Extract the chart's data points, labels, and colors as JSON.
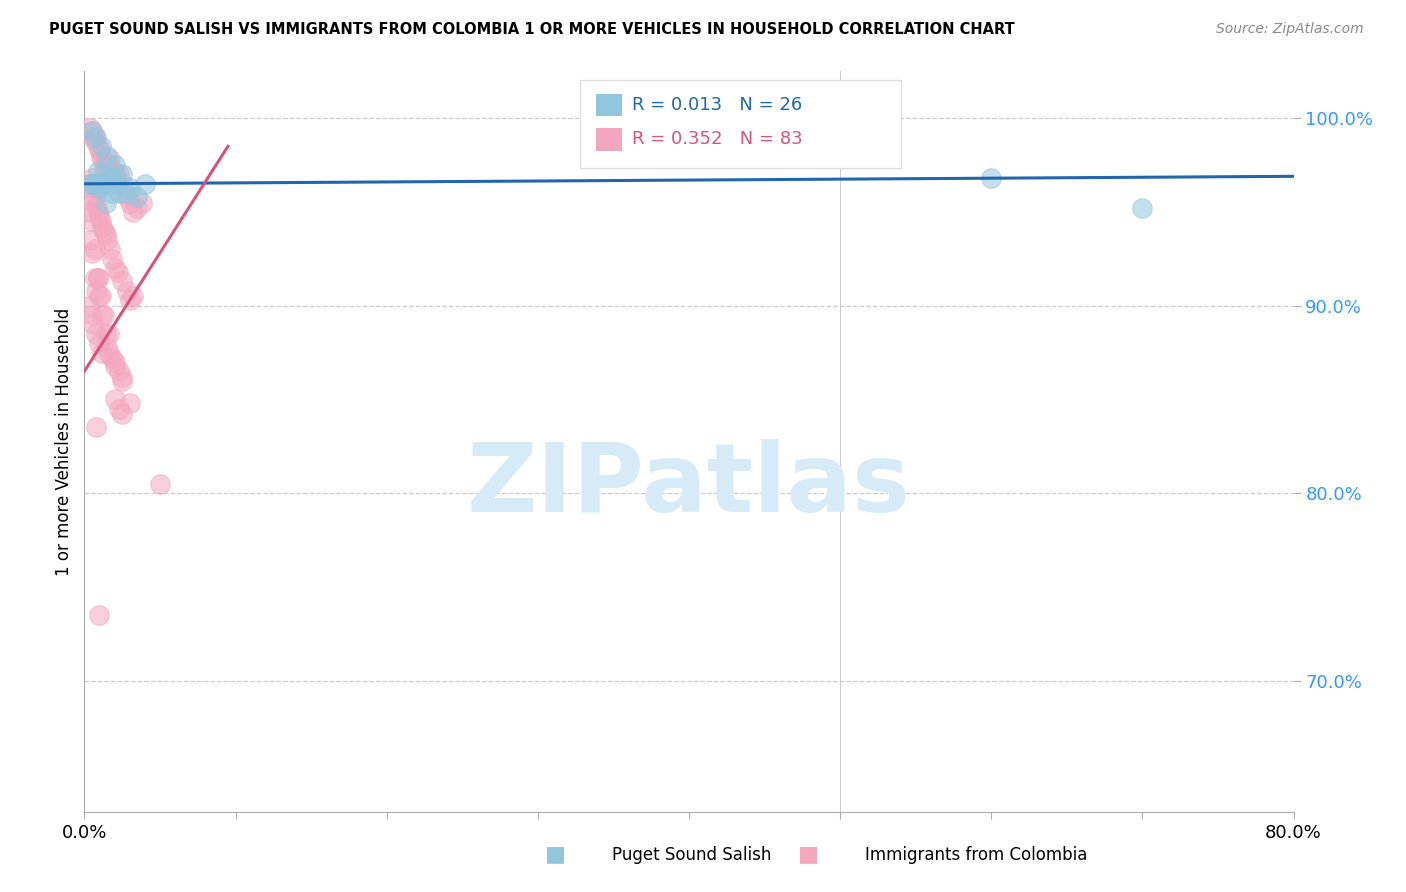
{
  "title": "PUGET SOUND SALISH VS IMMIGRANTS FROM COLOMBIA 1 OR MORE VEHICLES IN HOUSEHOLD CORRELATION CHART",
  "source": "Source: ZipAtlas.com",
  "ylabel": "1 or more Vehicles in Household",
  "xlim": [
    0.0,
    80.0
  ],
  "ylim": [
    63.0,
    102.5
  ],
  "yticks": [
    70.0,
    80.0,
    90.0,
    100.0
  ],
  "ytick_labels": [
    "70.0%",
    "80.0%",
    "90.0%",
    "100.0%"
  ],
  "xticks": [
    0,
    10,
    20,
    30,
    40,
    50,
    60,
    70,
    80
  ],
  "blue_color": "#92c5de",
  "pink_color": "#f4a6be",
  "blue_line_color": "#2166ac",
  "pink_line_color": "#d6547a",
  "blue_line_x": [
    0.0,
    80.0
  ],
  "blue_line_y": [
    96.5,
    96.9
  ],
  "pink_line_x": [
    0.0,
    9.5
  ],
  "pink_line_y": [
    86.5,
    98.5
  ],
  "watermark": "ZIPatlas",
  "watermark_color": "#d6eaf8",
  "blue_scatter_x": [
    0.5,
    0.7,
    1.1,
    1.5,
    2.0,
    2.5,
    0.9,
    1.3,
    1.7,
    2.2,
    0.6,
    1.2,
    1.8,
    2.8,
    3.5,
    1.0,
    1.6,
    2.3,
    0.8,
    2.0,
    0.4,
    3.0,
    60.0,
    70.0,
    4.0,
    1.4
  ],
  "blue_scatter_y": [
    99.3,
    99.0,
    98.5,
    98.0,
    97.5,
    97.0,
    97.2,
    97.0,
    96.8,
    96.5,
    96.5,
    96.5,
    96.0,
    96.0,
    95.8,
    96.3,
    96.5,
    96.0,
    96.5,
    96.8,
    96.5,
    96.3,
    96.8,
    95.2,
    96.5,
    95.5
  ],
  "pink_scatter_x": [
    0.4,
    0.5,
    0.6,
    0.7,
    0.8,
    0.9,
    1.0,
    1.1,
    1.2,
    1.3,
    1.4,
    1.5,
    1.6,
    1.7,
    1.8,
    2.0,
    2.1,
    2.2,
    2.3,
    2.5,
    2.6,
    2.8,
    3.0,
    3.2,
    3.5,
    3.8,
    0.5,
    0.6,
    0.7,
    0.8,
    0.9,
    1.0,
    1.1,
    1.2,
    1.3,
    1.4,
    1.5,
    1.7,
    1.8,
    2.0,
    2.2,
    2.5,
    2.8,
    3.0,
    3.2,
    0.3,
    0.5,
    0.6,
    0.8,
    1.0,
    1.2,
    1.5,
    1.8,
    2.0,
    2.3,
    2.5,
    5.0,
    0.4,
    0.5,
    0.7,
    0.8,
    0.9,
    1.0,
    1.2,
    1.4,
    1.6,
    2.0,
    2.3,
    2.5,
    3.0,
    0.3,
    0.5,
    0.7,
    0.9,
    1.1,
    1.3,
    1.6,
    2.0,
    2.5,
    0.4,
    0.6,
    0.8,
    1.0
  ],
  "pink_scatter_y": [
    99.5,
    99.3,
    99.0,
    98.8,
    99.0,
    98.5,
    98.3,
    98.0,
    97.8,
    97.5,
    97.3,
    97.0,
    97.5,
    97.8,
    97.2,
    97.0,
    96.8,
    96.5,
    97.0,
    96.5,
    96.0,
    95.8,
    95.5,
    95.0,
    95.2,
    95.5,
    96.8,
    96.3,
    95.8,
    95.3,
    95.0,
    94.8,
    94.5,
    94.2,
    94.0,
    93.8,
    93.5,
    93.0,
    92.5,
    92.0,
    91.8,
    91.3,
    90.8,
    90.3,
    90.5,
    90.0,
    89.5,
    89.0,
    88.5,
    88.0,
    87.5,
    87.8,
    87.2,
    86.8,
    86.5,
    86.2,
    80.5,
    93.5,
    92.8,
    91.5,
    90.8,
    91.5,
    90.5,
    89.5,
    88.5,
    87.5,
    85.0,
    84.5,
    84.2,
    84.8,
    95.0,
    94.5,
    93.0,
    91.5,
    90.5,
    89.5,
    88.5,
    87.0,
    86.0,
    96.5,
    95.5,
    83.5,
    73.5
  ]
}
